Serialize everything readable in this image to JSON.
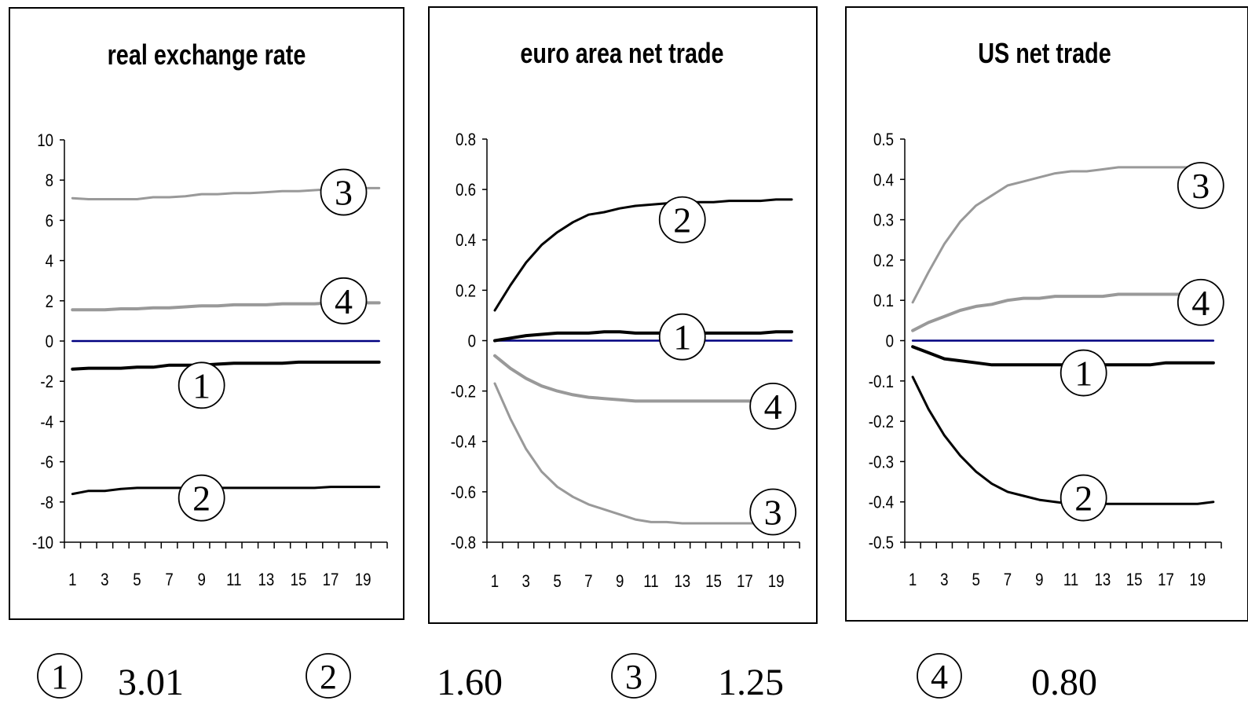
{
  "chart_data": [
    {
      "type": "line",
      "title": "real exchange rate",
      "x": [
        1,
        2,
        3,
        4,
        5,
        6,
        7,
        8,
        9,
        10,
        11,
        12,
        13,
        14,
        15,
        16,
        17,
        18,
        19,
        20
      ],
      "x_tick_labels": [
        "1",
        "3",
        "5",
        "7",
        "9",
        "11",
        "13",
        "15",
        "17",
        "19"
      ],
      "ylim": [
        -10,
        10
      ],
      "y_tick_labels": [
        "10",
        "8",
        "6",
        "4",
        "2",
        "0",
        "-2",
        "-4",
        "-6",
        "-8",
        "-10"
      ],
      "series": [
        {
          "name": "1",
          "color": "#000000",
          "values": [
            -1.4,
            -1.35,
            -1.35,
            -1.35,
            -1.3,
            -1.3,
            -1.2,
            -1.2,
            -1.2,
            -1.15,
            -1.1,
            -1.1,
            -1.1,
            -1.1,
            -1.05,
            -1.05,
            -1.05,
            -1.05,
            -1.05,
            -1.05
          ]
        },
        {
          "name": "2",
          "color": "#000000",
          "values": [
            -7.6,
            -7.45,
            -7.45,
            -7.35,
            -7.3,
            -7.3,
            -7.3,
            -7.3,
            -7.3,
            -7.3,
            -7.3,
            -7.3,
            -7.3,
            -7.3,
            -7.3,
            -7.3,
            -7.25,
            -7.25,
            -7.25,
            -7.25
          ]
        },
        {
          "name": "3",
          "color": "#999999",
          "values": [
            7.1,
            7.05,
            7.05,
            7.05,
            7.05,
            7.15,
            7.15,
            7.2,
            7.3,
            7.3,
            7.35,
            7.35,
            7.4,
            7.45,
            7.45,
            7.5,
            7.55,
            7.55,
            7.6,
            7.6
          ]
        },
        {
          "name": "4",
          "color": "#999999",
          "values": [
            1.55,
            1.55,
            1.55,
            1.6,
            1.6,
            1.65,
            1.65,
            1.7,
            1.75,
            1.75,
            1.8,
            1.8,
            1.8,
            1.85,
            1.85,
            1.85,
            1.9,
            1.9,
            1.9,
            1.9
          ]
        },
        {
          "name": "zero",
          "color": "#000080",
          "values": [
            0,
            0,
            0,
            0,
            0,
            0,
            0,
            0,
            0,
            0,
            0,
            0,
            0,
            0,
            0,
            0,
            0,
            0,
            0,
            0
          ]
        }
      ],
      "labels": [
        {
          "text": "3",
          "x": 17.8,
          "y": 7.4
        },
        {
          "text": "4",
          "x": 17.8,
          "y": 2.0
        },
        {
          "text": "1",
          "x": 9.0,
          "y": -2.2
        },
        {
          "text": "2",
          "x": 9.0,
          "y": -7.8
        }
      ]
    },
    {
      "type": "line",
      "title": "euro area net trade",
      "x": [
        1,
        2,
        3,
        4,
        5,
        6,
        7,
        8,
        9,
        10,
        11,
        12,
        13,
        14,
        15,
        16,
        17,
        18,
        19,
        20
      ],
      "x_tick_labels": [
        "1",
        "3",
        "5",
        "7",
        "9",
        "11",
        "13",
        "15",
        "17",
        "19"
      ],
      "ylim": [
        -0.8,
        0.8
      ],
      "y_tick_labels": [
        "0.8",
        "0.6",
        "0.4",
        "0.2",
        "0",
        "-0.2",
        "-0.4",
        "-0.6",
        "-0.8"
      ],
      "series": [
        {
          "name": "1",
          "color": "#000000",
          "values": [
            0.0,
            0.01,
            0.02,
            0.025,
            0.03,
            0.03,
            0.03,
            0.035,
            0.035,
            0.03,
            0.03,
            0.03,
            0.03,
            0.03,
            0.03,
            0.03,
            0.03,
            0.03,
            0.035,
            0.035
          ]
        },
        {
          "name": "2",
          "color": "#000000",
          "values": [
            0.12,
            0.22,
            0.31,
            0.38,
            0.43,
            0.47,
            0.5,
            0.51,
            0.525,
            0.535,
            0.54,
            0.545,
            0.55,
            0.55,
            0.55,
            0.555,
            0.555,
            0.555,
            0.56,
            0.56
          ]
        },
        {
          "name": "3",
          "color": "#999999",
          "values": [
            -0.17,
            -0.31,
            -0.43,
            -0.52,
            -0.58,
            -0.62,
            -0.65,
            -0.67,
            -0.69,
            -0.71,
            -0.72,
            -0.72,
            -0.725,
            -0.725,
            -0.725,
            -0.725,
            -0.725,
            -0.725,
            -0.72,
            -0.72
          ]
        },
        {
          "name": "4",
          "color": "#999999",
          "values": [
            -0.06,
            -0.11,
            -0.15,
            -0.18,
            -0.2,
            -0.215,
            -0.225,
            -0.23,
            -0.235,
            -0.24,
            -0.24,
            -0.24,
            -0.24,
            -0.24,
            -0.24,
            -0.24,
            -0.24,
            -0.24,
            -0.24,
            -0.24
          ]
        },
        {
          "name": "zero",
          "color": "#000080",
          "values": [
            0,
            0,
            0,
            0,
            0,
            0,
            0,
            0,
            0,
            0,
            0,
            0,
            0,
            0,
            0,
            0,
            0,
            0,
            0,
            0
          ]
        }
      ],
      "labels": [
        {
          "text": "2",
          "x": 13.0,
          "y": 0.48
        },
        {
          "text": "1",
          "x": 13.0,
          "y": 0.015
        },
        {
          "text": "4",
          "x": 18.8,
          "y": -0.26
        },
        {
          "text": "3",
          "x": 18.8,
          "y": -0.68
        }
      ]
    },
    {
      "type": "line",
      "title": "US net trade",
      "x": [
        1,
        2,
        3,
        4,
        5,
        6,
        7,
        8,
        9,
        10,
        11,
        12,
        13,
        14,
        15,
        16,
        17,
        18,
        19,
        20
      ],
      "x_tick_labels": [
        "1",
        "3",
        "5",
        "7",
        "9",
        "11",
        "13",
        "15",
        "17",
        "19"
      ],
      "ylim": [
        -0.5,
        0.5
      ],
      "y_tick_labels": [
        "0.5",
        "0.4",
        "0.3",
        "0.2",
        "0.1",
        "0",
        "-0.1",
        "-0.2",
        "-0.3",
        "-0.4",
        "-0.5"
      ],
      "series": [
        {
          "name": "1",
          "color": "#000000",
          "values": [
            -0.015,
            -0.03,
            -0.045,
            -0.05,
            -0.055,
            -0.06,
            -0.06,
            -0.06,
            -0.06,
            -0.06,
            -0.06,
            -0.06,
            -0.06,
            -0.06,
            -0.06,
            -0.06,
            -0.055,
            -0.055,
            -0.055,
            -0.055
          ]
        },
        {
          "name": "2",
          "color": "#000000",
          "values": [
            -0.09,
            -0.17,
            -0.235,
            -0.285,
            -0.325,
            -0.355,
            -0.375,
            -0.385,
            -0.395,
            -0.4,
            -0.405,
            -0.405,
            -0.405,
            -0.405,
            -0.405,
            -0.405,
            -0.405,
            -0.405,
            -0.405,
            -0.4
          ]
        },
        {
          "name": "3",
          "color": "#999999",
          "values": [
            0.095,
            0.17,
            0.24,
            0.295,
            0.335,
            0.36,
            0.385,
            0.395,
            0.405,
            0.415,
            0.42,
            0.42,
            0.425,
            0.43,
            0.43,
            0.43,
            0.43,
            0.43,
            0.43,
            0.43
          ]
        },
        {
          "name": "4",
          "color": "#999999",
          "values": [
            0.025,
            0.045,
            0.06,
            0.075,
            0.085,
            0.09,
            0.1,
            0.105,
            0.105,
            0.11,
            0.11,
            0.11,
            0.11,
            0.115,
            0.115,
            0.115,
            0.115,
            0.115,
            0.115,
            0.115
          ]
        },
        {
          "name": "zero",
          "color": "#000080",
          "values": [
            0,
            0,
            0,
            0,
            0,
            0,
            0,
            0,
            0,
            0,
            0,
            0,
            0,
            0,
            0,
            0,
            0,
            0,
            0,
            0
          ]
        }
      ],
      "labels": [
        {
          "text": "3",
          "x": 19.2,
          "y": 0.385
        },
        {
          "text": "4",
          "x": 19.2,
          "y": 0.095
        },
        {
          "text": "1",
          "x": 11.8,
          "y": -0.08
        },
        {
          "text": "2",
          "x": 11.8,
          "y": -0.39
        }
      ]
    }
  ],
  "legend": [
    {
      "marker": "1",
      "value": "3.01"
    },
    {
      "marker": "2",
      "value": "1.60"
    },
    {
      "marker": "3",
      "value": "1.25"
    },
    {
      "marker": "4",
      "value": "0.80"
    }
  ]
}
